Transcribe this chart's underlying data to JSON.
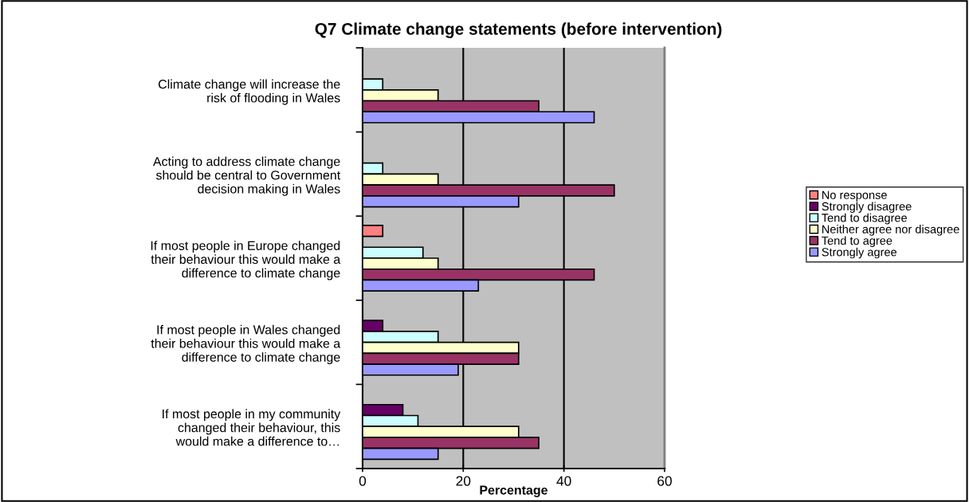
{
  "chart_data": {
    "type": "bar",
    "orientation": "horizontal",
    "title": "Q7 Climate change statements (before intervention)",
    "xlabel": "Percentage",
    "categories": [
      "Climate change will increase the\nrisk of flooding in Wales",
      "Acting to address climate change\nshould be central to Government\ndecision making in Wales",
      "If most people in Europe changed\ntheir behaviour this would make a\ndifference to climate change",
      "If most people in Wales changed\ntheir behaviour this would make a\ndifference to climate change",
      "If most people in my community\nchanged their behaviour, this\nwould make a difference to…"
    ],
    "series": [
      {
        "name": "No response",
        "color": "#ff8080",
        "values": [
          0,
          0,
          4,
          0,
          0
        ]
      },
      {
        "name": "Strongly disagree",
        "color": "#660066",
        "values": [
          0,
          0,
          0,
          4,
          8
        ]
      },
      {
        "name": "Tend to disagree",
        "color": "#ccffff",
        "values": [
          4,
          4,
          12,
          15,
          11
        ]
      },
      {
        "name": "Neither agree nor disagree",
        "color": "#ffffcc",
        "values": [
          15,
          15,
          15,
          31,
          31
        ]
      },
      {
        "name": "Tend to agree",
        "color": "#993366",
        "values": [
          35,
          50,
          46,
          31,
          35
        ]
      },
      {
        "name": "Strongly agree",
        "color": "#9999ff",
        "values": [
          46,
          31,
          23,
          19,
          15
        ]
      }
    ],
    "xlim": [
      0,
      60
    ],
    "xticks": [
      0,
      20,
      40,
      60
    ],
    "grid": "x",
    "legend": "right"
  }
}
